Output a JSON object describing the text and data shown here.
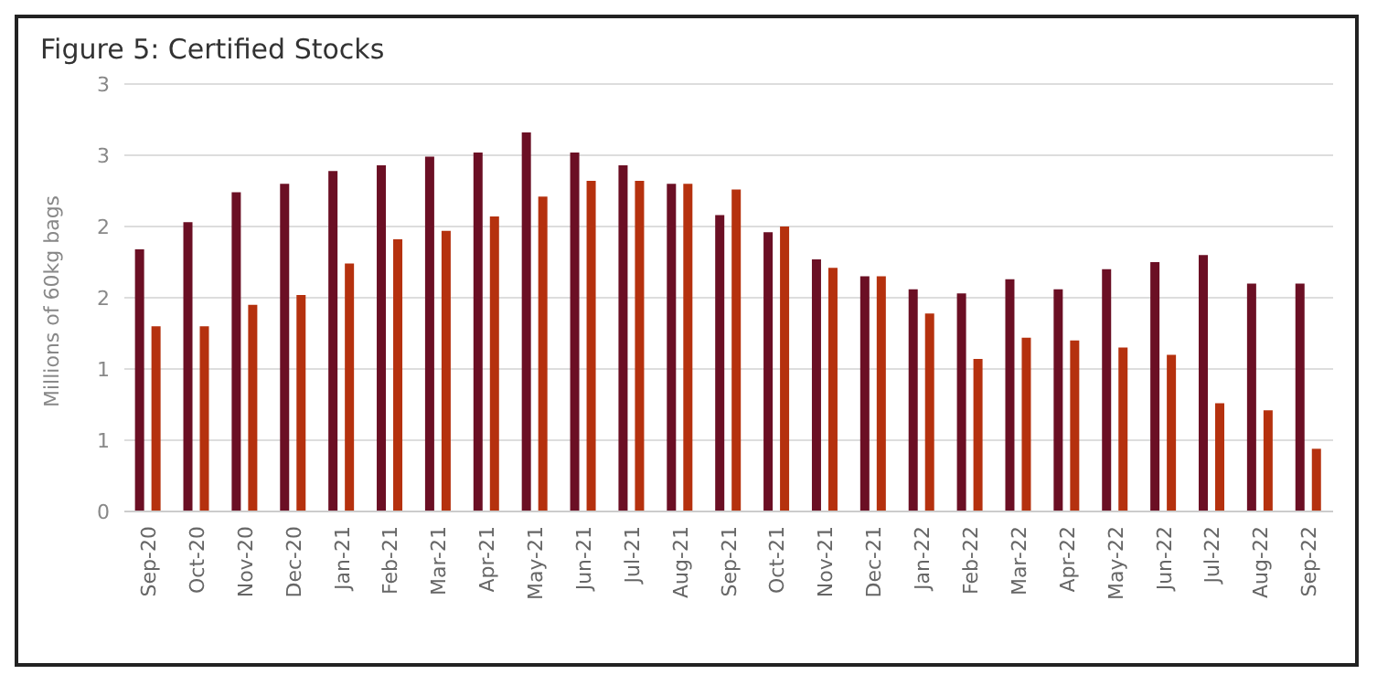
{
  "chart_data": {
    "type": "bar",
    "title": "Figure 5: Certified Stocks",
    "ylabel": "Millions of 60kg bags",
    "categories": [
      "Sep-20",
      "Oct-20",
      "Nov-20",
      "Dec-20",
      "Jan-21",
      "Feb-21",
      "Mar-21",
      "Apr-21",
      "May-21",
      "Jun-21",
      "Jul-21",
      "Aug-21",
      "Sep-21",
      "Oct-21",
      "Nov-21",
      "Dec-21",
      "Jan-22",
      "Feb-22",
      "Mar-22",
      "Apr-22",
      "May-22",
      "Jun-22",
      "Jul-22",
      "Aug-22",
      "Sep-22"
    ],
    "series": [
      {
        "color": "#6b0f24",
        "values": [
          1.84,
          2.03,
          2.24,
          2.3,
          2.39,
          2.43,
          2.49,
          2.52,
          2.66,
          2.52,
          2.43,
          2.3,
          2.08,
          1.96,
          1.77,
          1.65,
          1.56,
          1.53,
          1.63,
          1.56,
          1.7,
          1.75,
          1.8,
          1.6,
          1.6
        ]
      },
      {
        "color": "#b5310e",
        "values": [
          1.3,
          1.3,
          1.45,
          1.52,
          1.74,
          1.91,
          1.97,
          2.07,
          2.21,
          2.32,
          2.32,
          2.3,
          2.26,
          2.0,
          1.71,
          1.65,
          1.39,
          1.07,
          1.22,
          1.2,
          1.15,
          1.1,
          0.76,
          0.71,
          0.44
        ]
      }
    ],
    "ylim": [
      0,
      3
    ],
    "yticks": [
      0,
      {
        "value": 0.5,
        "label": "1"
      },
      1,
      {
        "value": 1.5,
        "label": "2"
      },
      2,
      {
        "value": 2.5,
        "label": "3"
      },
      3
    ],
    "grid": "y",
    "legend": false
  }
}
